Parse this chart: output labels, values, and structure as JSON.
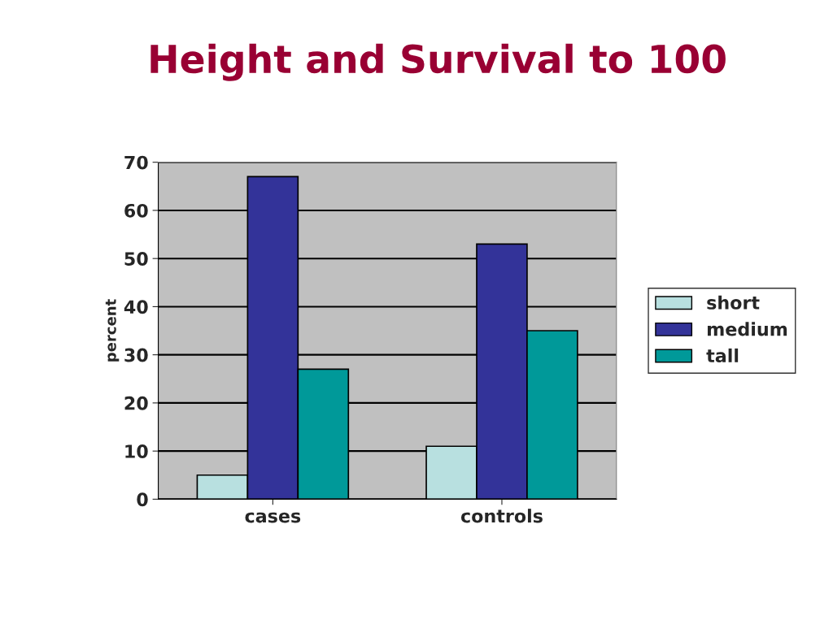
{
  "chart_data": {
    "type": "bar",
    "title": "Height and Survival to 100",
    "ylabel": "percent",
    "categories": [
      "cases",
      "controls"
    ],
    "series": [
      {
        "name": "short",
        "color": "#b8e0e0",
        "values": [
          5,
          11
        ]
      },
      {
        "name": "medium",
        "color": "#333399",
        "values": [
          67,
          53
        ]
      },
      {
        "name": "tall",
        "color": "#009999",
        "values": [
          27,
          35
        ]
      }
    ],
    "ylim": [
      0,
      70
    ],
    "yticks": [
      0,
      10,
      20,
      30,
      40,
      50,
      60,
      70
    ],
    "grid": "y",
    "legend": "right"
  }
}
